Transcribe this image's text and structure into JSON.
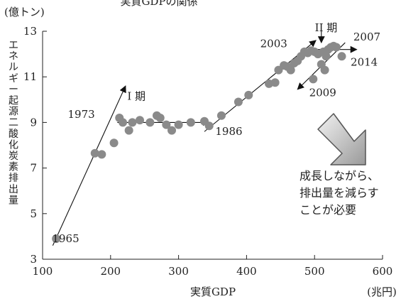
{
  "chart_data": {
    "type": "scatter",
    "title": "実質GDPの関係",
    "xlabel": "実質GDP",
    "x_unit": "(兆円)",
    "ylabel": "エネルギー起源二酸化炭素排出量",
    "y_unit": "(億トン)",
    "xlim": [
      100,
      600
    ],
    "ylim": [
      3,
      13
    ],
    "x_ticks": [
      "100",
      "200",
      "300",
      "400",
      "500",
      "600"
    ],
    "y_ticks": [
      "3",
      "5",
      "7",
      "9",
      "11",
      "13"
    ],
    "grid": false,
    "points": [
      {
        "x": 120,
        "y": 3.9
      },
      {
        "x": 177,
        "y": 7.65
      },
      {
        "x": 187,
        "y": 7.6
      },
      {
        "x": 205,
        "y": 8.1
      },
      {
        "x": 213,
        "y": 9.2
      },
      {
        "x": 218,
        "y": 9.0
      },
      {
        "x": 227,
        "y": 8.65
      },
      {
        "x": 232,
        "y": 9.0
      },
      {
        "x": 243,
        "y": 9.1
      },
      {
        "x": 258,
        "y": 9.0
      },
      {
        "x": 268,
        "y": 9.3
      },
      {
        "x": 273,
        "y": 9.2
      },
      {
        "x": 282,
        "y": 8.9
      },
      {
        "x": 290,
        "y": 8.65
      },
      {
        "x": 300,
        "y": 8.9
      },
      {
        "x": 318,
        "y": 9.0
      },
      {
        "x": 338,
        "y": 9.05
      },
      {
        "x": 345,
        "y": 8.85
      },
      {
        "x": 363,
        "y": 9.3
      },
      {
        "x": 388,
        "y": 9.9
      },
      {
        "x": 403,
        "y": 10.2
      },
      {
        "x": 433,
        "y": 10.7
      },
      {
        "x": 442,
        "y": 10.75
      },
      {
        "x": 447,
        "y": 11.3
      },
      {
        "x": 455,
        "y": 11.5
      },
      {
        "x": 460,
        "y": 11.45
      },
      {
        "x": 465,
        "y": 11.3
      },
      {
        "x": 470,
        "y": 11.6
      },
      {
        "x": 475,
        "y": 11.7
      },
      {
        "x": 480,
        "y": 11.9
      },
      {
        "x": 485,
        "y": 12.1
      },
      {
        "x": 490,
        "y": 12.05
      },
      {
        "x": 495,
        "y": 12.15
      },
      {
        "x": 500,
        "y": 12.1
      },
      {
        "x": 505,
        "y": 12.0
      },
      {
        "x": 510,
        "y": 11.55
      },
      {
        "x": 513,
        "y": 12.1
      },
      {
        "x": 517,
        "y": 11.9
      },
      {
        "x": 520,
        "y": 12.2
      },
      {
        "x": 524,
        "y": 12.3
      },
      {
        "x": 528,
        "y": 12.35
      },
      {
        "x": 532,
        "y": 12.3
      },
      {
        "x": 498,
        "y": 10.9
      },
      {
        "x": 515,
        "y": 11.3
      },
      {
        "x": 540,
        "y": 11.9
      }
    ],
    "trend_arrows": [
      {
        "from": [
          115,
          3.6
        ],
        "to": [
          222,
          10.6
        ]
      },
      {
        "from": [
          210,
          9.0
        ],
        "to": [
          345,
          9.0
        ]
      },
      {
        "from": [
          338,
          8.6
        ],
        "to": [
          502,
          12.6
        ]
      },
      {
        "from": [
          483,
          12.2
        ],
        "to": [
          562,
          12.2
        ]
      },
      {
        "from": [
          545,
          12.5
        ],
        "to": [
          475,
          10.45
        ]
      }
    ],
    "annotations": [
      {
        "text": "1965",
        "x": 134,
        "y": 3.9
      },
      {
        "text": "1973",
        "x": 157,
        "y": 9.35
      },
      {
        "text": "I 期",
        "x": 238,
        "y": 10.15
      },
      {
        "text": "1986",
        "x": 374,
        "y": 8.6
      },
      {
        "text": "II 期",
        "x": 517,
        "y": 13.15
      },
      {
        "text": "2003",
        "x": 440,
        "y": 12.45
      },
      {
        "text": "2007",
        "x": 577,
        "y": 12.75
      },
      {
        "text": "2014",
        "x": 573,
        "y": 11.65
      },
      {
        "text": "2009",
        "x": 512,
        "y": 10.3
      }
    ],
    "message": [
      "成長しながら、",
      "排出量を減らす",
      "ことが必要"
    ]
  }
}
